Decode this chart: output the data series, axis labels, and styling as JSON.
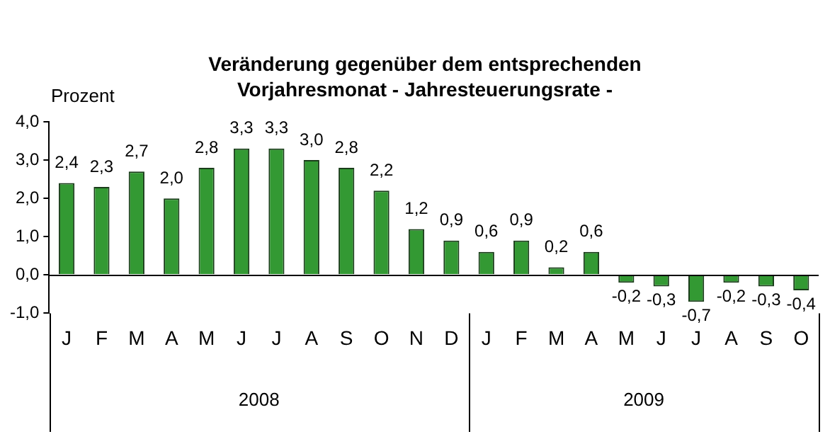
{
  "chart_data": {
    "type": "bar",
    "title": "Veränderung gegenüber dem entsprechenden Vorjahresmonat - Jahresteuerungsrate -",
    "ylabel": "Prozent",
    "categories": [
      "J",
      "F",
      "M",
      "A",
      "M",
      "J",
      "J",
      "A",
      "S",
      "O",
      "N",
      "D",
      "J",
      "F",
      "M",
      "A",
      "M",
      "J",
      "J",
      "A",
      "S",
      "O"
    ],
    "values": [
      2.4,
      2.3,
      2.7,
      2.0,
      2.8,
      3.3,
      3.3,
      3.0,
      2.8,
      2.2,
      1.2,
      0.9,
      0.6,
      0.9,
      0.2,
      0.6,
      -0.2,
      -0.3,
      -0.7,
      -0.2,
      -0.3,
      -0.4
    ],
    "value_labels": [
      "2,4",
      "2,3",
      "2,7",
      "2,0",
      "2,8",
      "3,3",
      "3,3",
      "3,0",
      "2,8",
      "2,2",
      "1,2",
      "0,9",
      "0,6",
      "0,9",
      "0,2",
      "0,6",
      "-0,2",
      "-0,3",
      "-0,7",
      "-0,2",
      "-0,3",
      "-0,4"
    ],
    "color": "#339933",
    "ylim": [
      -1,
      4
    ],
    "yticks": [
      {
        "value": -1,
        "label": "-1,0"
      },
      {
        "value": 0,
        "label": "0,0"
      },
      {
        "value": 1,
        "label": "1,0"
      },
      {
        "value": 2,
        "label": "2,0"
      },
      {
        "value": 3,
        "label": "3,0"
      },
      {
        "value": 4,
        "label": "4,0"
      }
    ],
    "annotations": [
      "2008",
      "2009"
    ],
    "grid": false,
    "legend": false
  }
}
